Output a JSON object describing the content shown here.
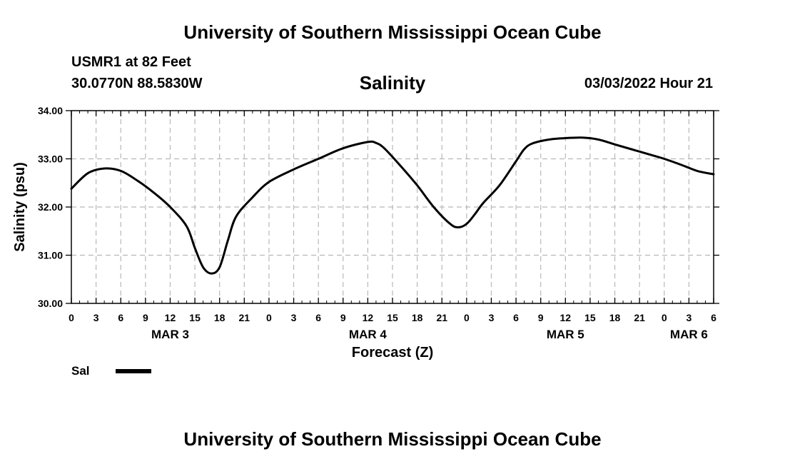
{
  "header": {
    "title": "University of Southern Mississippi Ocean Cube",
    "station": "USMR1 at 82 Feet",
    "coordinates": "30.0770N  88.5830W",
    "chart_title": "Salinity",
    "datetime": "03/03/2022 Hour 21"
  },
  "footer": {
    "title": "University of Southern Mississippi Ocean Cube"
  },
  "legend": {
    "label": "Sal"
  },
  "chart_data": {
    "type": "line",
    "title": "Salinity",
    "xlabel": "Forecast (Z)",
    "ylabel": "Salinity (psu)",
    "ylim": [
      30.0,
      34.0
    ],
    "yticks": [
      "30.00",
      "31.00",
      "32.00",
      "33.00",
      "34.00"
    ],
    "x_hour_range": [
      0,
      78
    ],
    "x_tick_labels": [
      "0",
      "3",
      "6",
      "9",
      "12",
      "15",
      "18",
      "21",
      "0",
      "3",
      "6",
      "9",
      "12",
      "15",
      "18",
      "21",
      "0",
      "3",
      "6",
      "9",
      "12",
      "15",
      "18",
      "21",
      "0",
      "3",
      "6"
    ],
    "x_date_labels": [
      {
        "label": "MAR 3",
        "hour": 12
      },
      {
        "label": "MAR 4",
        "hour": 36
      },
      {
        "label": "MAR 5",
        "hour": 60
      },
      {
        "label": "MAR 6",
        "hour": 75
      }
    ],
    "grid": true,
    "series": [
      {
        "name": "Sal",
        "hours": [
          0,
          2,
          4,
          6,
          8,
          10,
          12,
          14,
          15,
          16,
          17,
          18,
          19,
          20,
          22,
          24,
          27,
          30,
          33,
          36,
          37,
          38,
          40,
          42,
          44,
          46,
          47,
          48,
          49,
          50,
          52,
          54,
          55,
          56,
          58,
          60,
          62,
          64,
          66,
          68,
          70,
          72,
          74,
          76,
          78
        ],
        "values": [
          32.38,
          32.7,
          32.8,
          32.75,
          32.55,
          32.3,
          32.0,
          31.6,
          31.15,
          30.75,
          30.62,
          30.75,
          31.3,
          31.8,
          32.2,
          32.52,
          32.78,
          33.0,
          33.22,
          33.35,
          33.33,
          33.22,
          32.85,
          32.45,
          32.0,
          31.65,
          31.58,
          31.65,
          31.85,
          32.08,
          32.45,
          32.95,
          33.2,
          33.32,
          33.4,
          33.43,
          33.44,
          33.4,
          33.3,
          33.2,
          33.1,
          33.0,
          32.88,
          32.75,
          32.68
        ]
      }
    ]
  }
}
